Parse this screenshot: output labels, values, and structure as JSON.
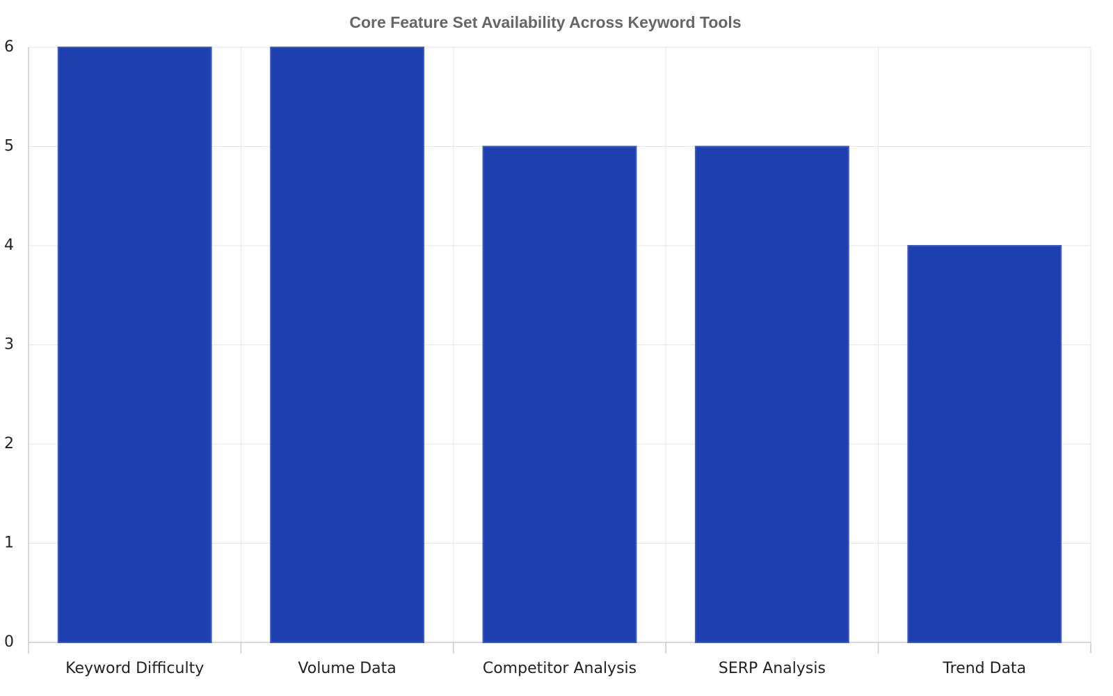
{
  "chart_data": {
    "type": "bar",
    "title": "Core Feature Set Availability Across Keyword Tools",
    "categories": [
      "Keyword Difficulty",
      "Volume Data",
      "Competitor Analysis",
      "SERP Analysis",
      "Trend Data"
    ],
    "values": [
      6,
      6,
      5,
      5,
      4
    ],
    "color": "#1e40af",
    "ylim": [
      0,
      6
    ],
    "yticks": [
      0,
      1,
      2,
      3,
      4,
      5,
      6
    ],
    "grid": true
  }
}
